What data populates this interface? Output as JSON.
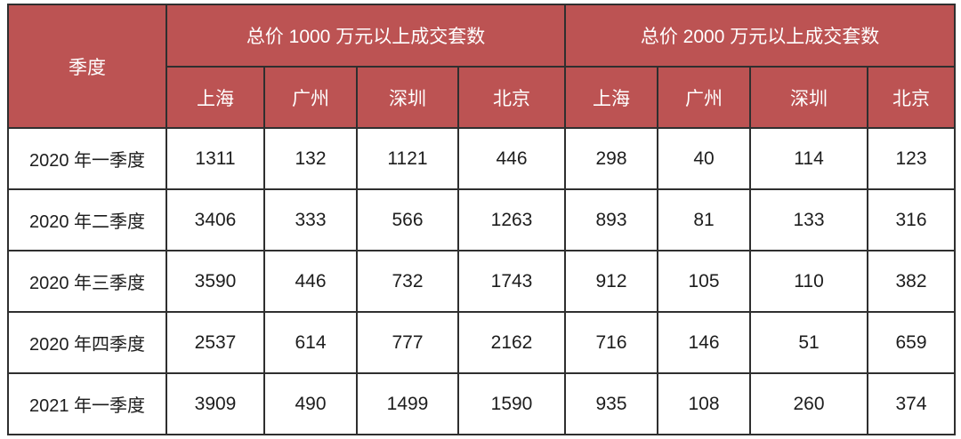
{
  "colors": {
    "header_bg": "#bc5353",
    "header_text": "#ffffff",
    "border": "#2f2f2f",
    "body_text": "#1d1d1d",
    "background": "#ffffff"
  },
  "table": {
    "quarter_header": "季度",
    "group_headers": [
      "总价 1000 万元以上成交套数",
      "总价 2000 万元以上成交套数"
    ],
    "city_headers": [
      "上海",
      "广州",
      "深圳",
      "北京",
      "上海",
      "广州",
      "深圳",
      "北京"
    ],
    "rows": [
      {
        "quarter": "2020 年一季度",
        "values": [
          "1311",
          "132",
          "1121",
          "446",
          "298",
          "40",
          "114",
          "123"
        ]
      },
      {
        "quarter": "2020 年二季度",
        "values": [
          "3406",
          "333",
          "566",
          "1263",
          "893",
          "81",
          "133",
          "316"
        ]
      },
      {
        "quarter": "2020 年三季度",
        "values": [
          "3590",
          "446",
          "732",
          "1743",
          "912",
          "105",
          "110",
          "382"
        ]
      },
      {
        "quarter": "2020 年四季度",
        "values": [
          "2537",
          "614",
          "777",
          "2162",
          "716",
          "146",
          "51",
          "659"
        ]
      },
      {
        "quarter": "2021 年一季度",
        "values": [
          "3909",
          "490",
          "1499",
          "1590",
          "935",
          "108",
          "260",
          "374"
        ]
      }
    ]
  },
  "chart_data": {
    "type": "table",
    "title": "",
    "column_groups": [
      "季度",
      "总价 1000 万元以上成交套数",
      "总价 2000 万元以上成交套数"
    ],
    "columns": [
      "季度",
      "上海",
      "广州",
      "深圳",
      "北京",
      "上海",
      "广州",
      "深圳",
      "北京"
    ],
    "rows": [
      [
        "2020 年一季度",
        1311,
        132,
        1121,
        446,
        298,
        40,
        114,
        123
      ],
      [
        "2020 年二季度",
        3406,
        333,
        566,
        1263,
        893,
        81,
        133,
        316
      ],
      [
        "2020 年三季度",
        3590,
        446,
        732,
        1743,
        912,
        105,
        110,
        382
      ],
      [
        "2020 年四季度",
        2537,
        614,
        777,
        2162,
        716,
        146,
        51,
        659
      ],
      [
        "2021 年一季度",
        3909,
        490,
        1499,
        1590,
        935,
        108,
        260,
        374
      ]
    ]
  }
}
